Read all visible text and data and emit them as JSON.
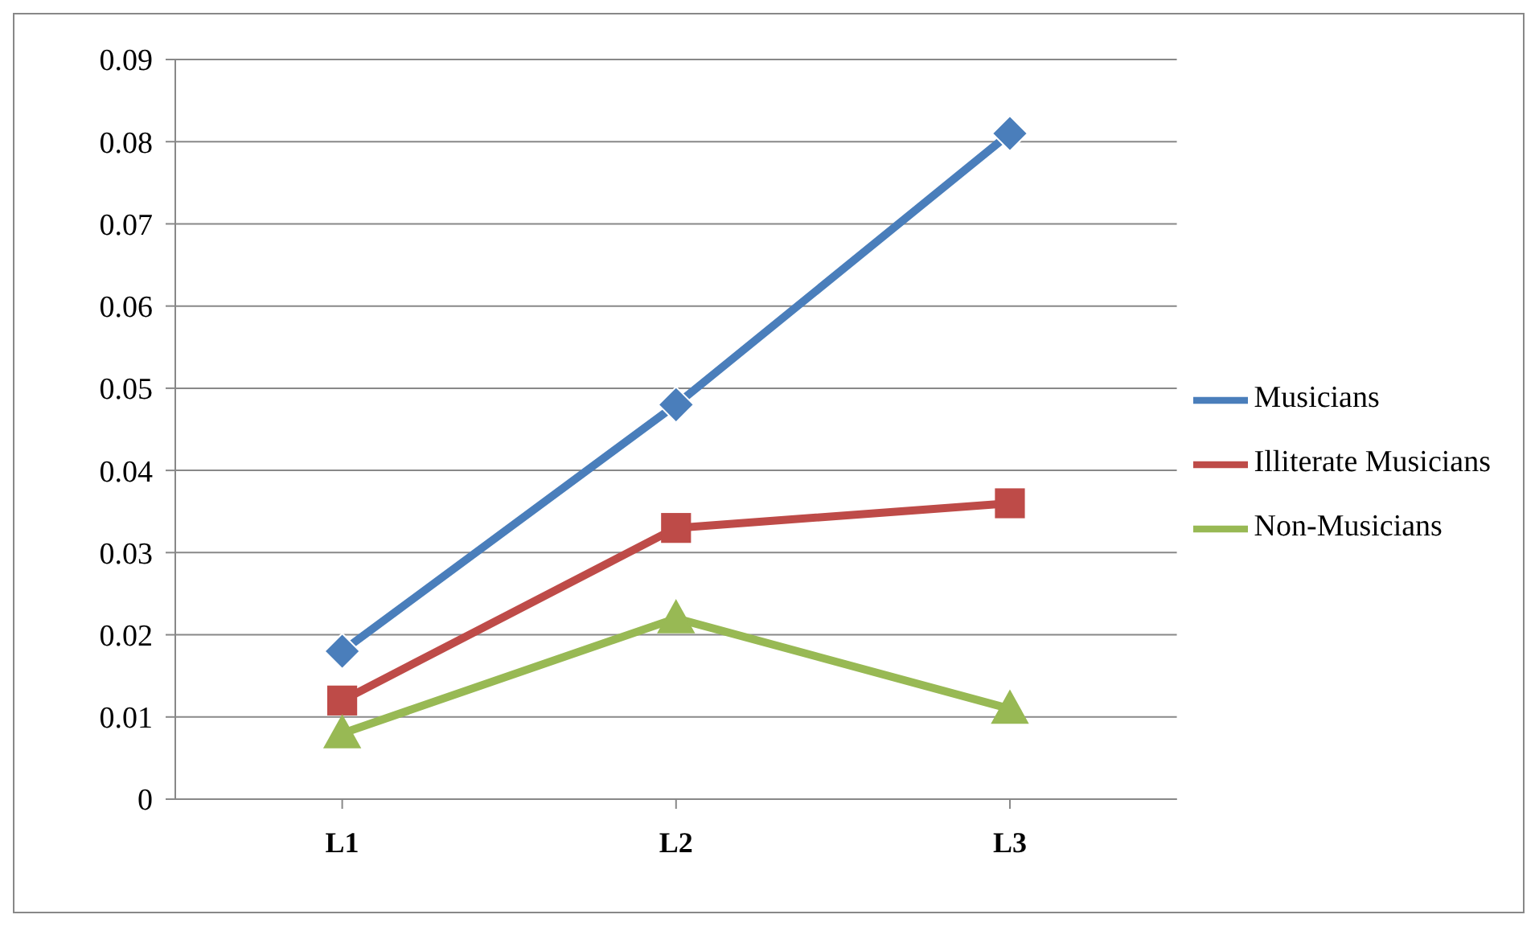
{
  "chart_data": {
    "type": "line",
    "categories": [
      "L1",
      "L2",
      "L3"
    ],
    "series": [
      {
        "name": "Musicians",
        "color": "#4a7ebb",
        "marker": "diamond",
        "values": [
          0.018,
          0.048,
          0.081
        ]
      },
      {
        "name": "Illiterate Musicians",
        "color": "#be4b48",
        "marker": "square",
        "values": [
          0.012,
          0.033,
          0.036
        ]
      },
      {
        "name": "Non-Musicians",
        "color": "#98b954",
        "marker": "triangle",
        "values": [
          0.008,
          0.022,
          0.011
        ]
      }
    ],
    "ylim": [
      0,
      0.09
    ],
    "yticks": [
      0,
      0.01,
      0.02,
      0.03,
      0.04,
      0.05,
      0.06,
      0.07,
      0.08,
      0.09
    ],
    "grid": "y",
    "legend": "right"
  }
}
